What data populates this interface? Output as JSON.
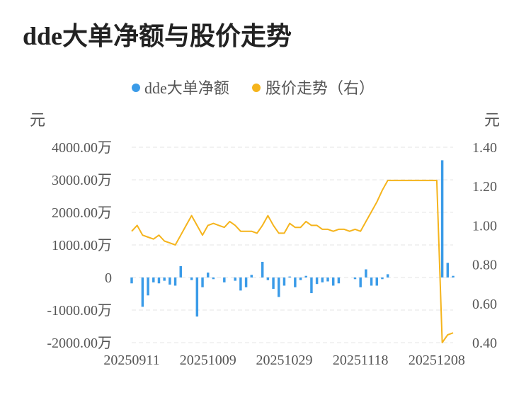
{
  "chart_data": {
    "type": "bar+line",
    "title": "dde大单净额与股价走势",
    "legend": {
      "placement": "top-center",
      "items": [
        "dde大单净额",
        "股价走势（右）"
      ]
    },
    "y_left": {
      "unit": "元",
      "ylim": [
        -2000,
        4000
      ],
      "ticks": [
        "4000.00万",
        "3000.00万",
        "2000.00万",
        "1000.00万",
        "0",
        "-1000.00万",
        "-2000.00万"
      ]
    },
    "y_right": {
      "unit": "元",
      "ylim": [
        0.4,
        1.4
      ],
      "ticks": [
        "1.40",
        "1.20",
        "1.00",
        "0.80",
        "0.60",
        "0.40"
      ]
    },
    "x_tick_labels": [
      "20250911",
      "20251009",
      "20251029",
      "20251118",
      "20251208"
    ],
    "categories": [
      "20250911",
      "20250912",
      "20250915",
      "20250916",
      "20250917",
      "20250918",
      "20250919",
      "20250922",
      "20250923",
      "20250924",
      "20250925",
      "20250926",
      "20250929",
      "20250930",
      "20251009",
      "20251010",
      "20251013",
      "20251014",
      "20251015",
      "20251016",
      "20251017",
      "20251020",
      "20251021",
      "20251022",
      "20251023",
      "20251024",
      "20251027",
      "20251028",
      "20251029",
      "20251030",
      "20251031",
      "20251103",
      "20251104",
      "20251105",
      "20251106",
      "20251107",
      "20251110",
      "20251111",
      "20251112",
      "20251113",
      "20251114",
      "20251117",
      "20251118",
      "20251119",
      "20251120",
      "20251121",
      "20251124",
      "20251125",
      "20251126",
      "20251127",
      "20251128",
      "20251201",
      "20251202",
      "20251203",
      "20251204",
      "20251205",
      "20251208",
      "20251209",
      "20251210",
      "20251211"
    ],
    "series": [
      {
        "name": "dde大单净额",
        "axis": "left",
        "type": "bar",
        "color": "#3a9be8",
        "values": [
          -180,
          0,
          -900,
          -550,
          -150,
          -180,
          -100,
          -220,
          -250,
          350,
          0,
          -80,
          -1200,
          -300,
          150,
          -50,
          0,
          -150,
          0,
          -100,
          -400,
          -300,
          80,
          0,
          480,
          -80,
          -350,
          -600,
          -250,
          30,
          -300,
          -80,
          50,
          -480,
          -200,
          -150,
          -120,
          -250,
          -180,
          0,
          0,
          -50,
          -300,
          250,
          -250,
          -250,
          -50,
          100,
          0,
          0,
          0,
          0,
          0,
          0,
          0,
          0,
          0,
          3600,
          450,
          50
        ]
      },
      {
        "name": "股价走势（右）",
        "axis": "right",
        "type": "line",
        "color": "#f5b41c",
        "values": [
          0.97,
          1.0,
          0.95,
          0.94,
          0.93,
          0.95,
          0.92,
          0.91,
          0.9,
          0.95,
          1.0,
          1.05,
          1.0,
          0.95,
          1.0,
          1.01,
          1.0,
          0.99,
          1.02,
          1.0,
          0.97,
          0.97,
          0.97,
          0.96,
          1.0,
          1.05,
          1.0,
          0.96,
          0.96,
          1.01,
          0.99,
          0.99,
          1.02,
          1.0,
          1.0,
          0.98,
          0.98,
          0.97,
          0.98,
          0.98,
          0.97,
          0.98,
          0.97,
          1.02,
          1.07,
          1.12,
          1.18,
          1.23,
          1.23,
          1.23,
          1.23,
          1.23,
          1.23,
          1.23,
          1.23,
          1.23,
          1.23,
          0.4,
          0.44,
          0.45
        ]
      }
    ],
    "grid": true
  }
}
